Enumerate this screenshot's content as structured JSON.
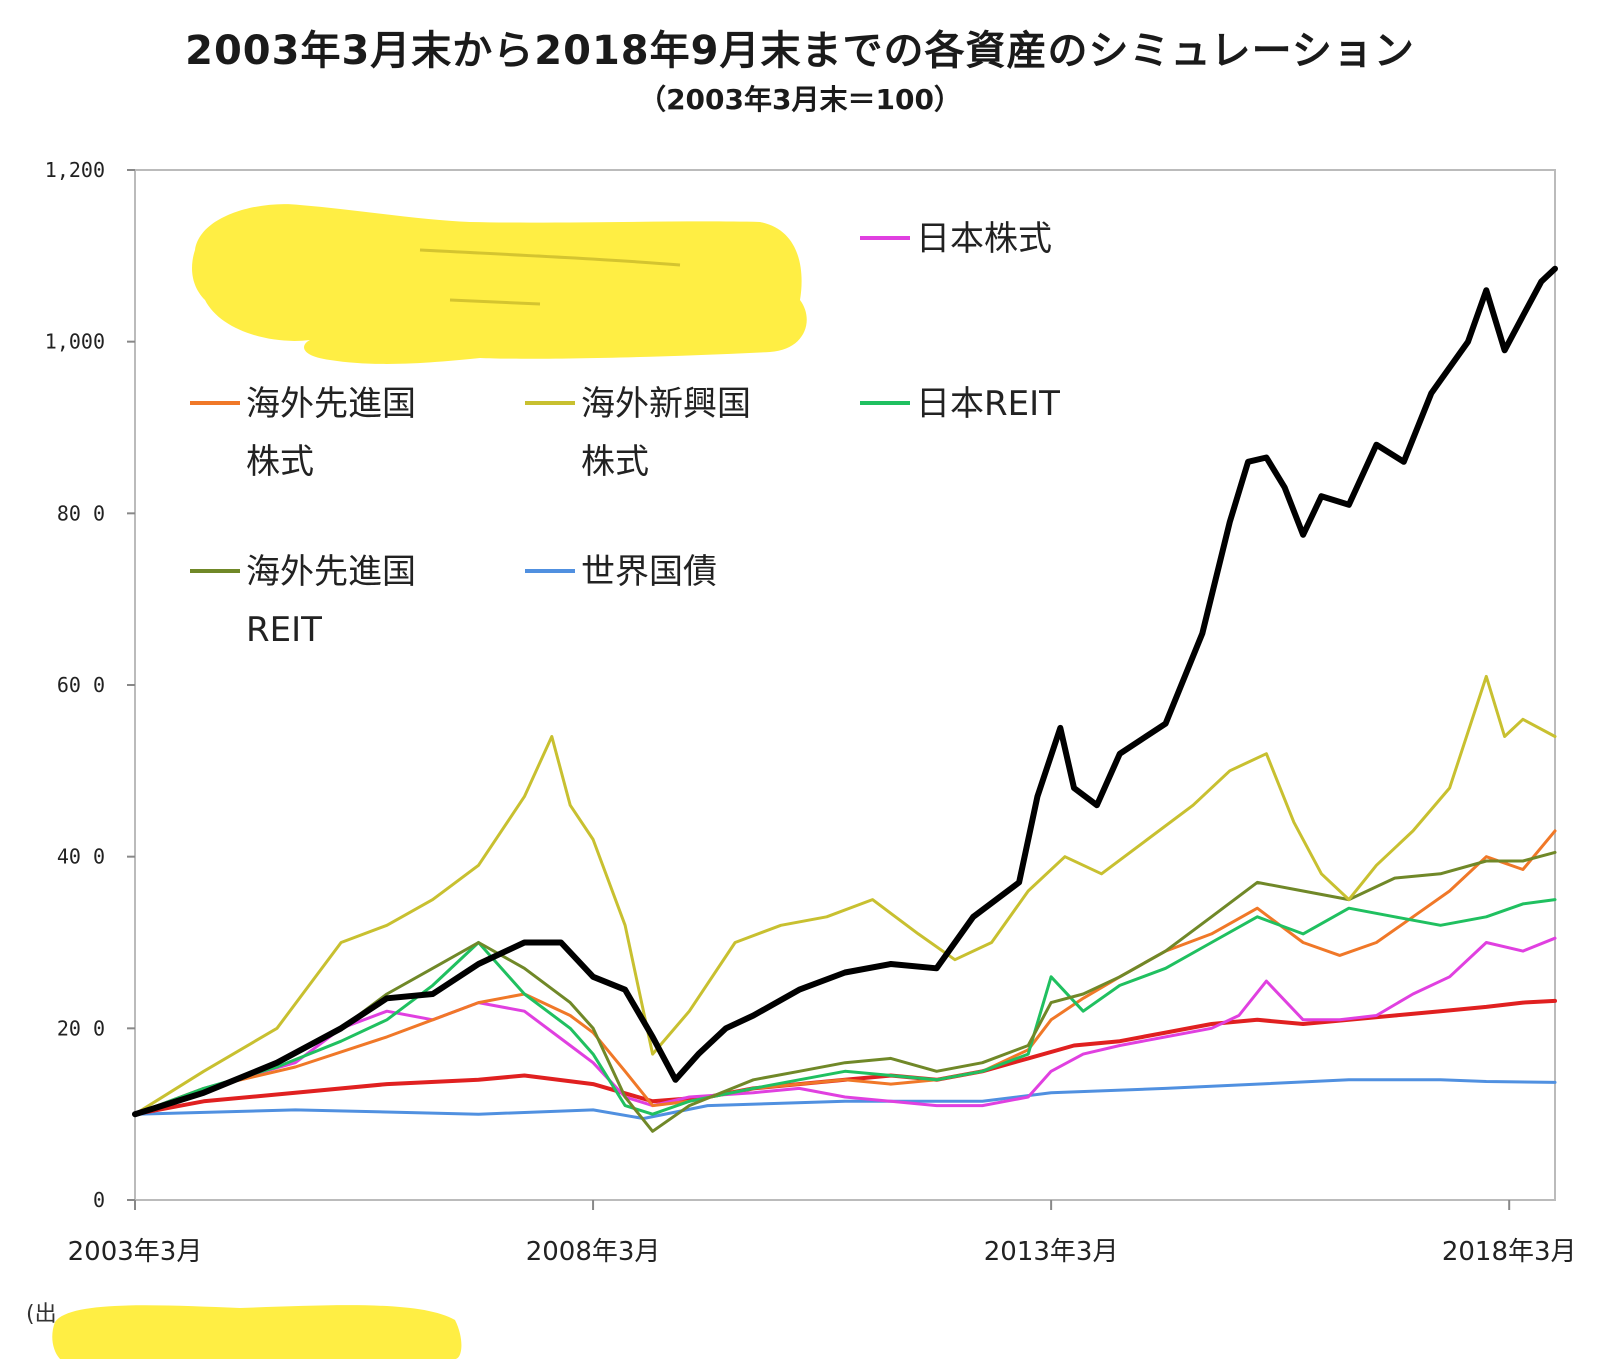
{
  "title": "2003年3月末から2018年9月末までの各資産のシミュレーション",
  "subtitle": "（2003年3月末＝100）",
  "source_prefix": "(出",
  "chart_data": {
    "type": "line",
    "title": "2003年3月末から2018年9月末までの各資産のシミュレーション",
    "subtitle": "（2003年3月末＝100）",
    "xlabel": "",
    "ylabel": "",
    "ylim": [
      0,
      1200
    ],
    "xlim": [
      2003.25,
      2018.75
    ],
    "yticks": [
      0,
      200,
      400,
      600,
      800,
      1000,
      1200
    ],
    "ytick_labels": [
      "0",
      "20 0",
      "40 0",
      "60 0",
      "80 0",
      "1,000",
      "1,200"
    ],
    "xticks": [
      2003.25,
      2008.25,
      2013.25,
      2018.25
    ],
    "xtick_labels": [
      "2003年3月",
      "2008年3月",
      "2013年3月",
      "2018年3月"
    ],
    "grid": false,
    "legend": "upper-left inside plot",
    "series": [
      {
        "key": "black",
        "name": "",
        "color": "#000000",
        "width": 6,
        "x": [
          2003.25,
          2004,
          2004.8,
          2005.5,
          2006,
          2006.5,
          2007,
          2007.5,
          2007.9,
          2008.25,
          2008.6,
          2008.9,
          2009.15,
          2009.4,
          2009.7,
          2010,
          2010.5,
          2011,
          2011.5,
          2012,
          2012.4,
          2012.9,
          2013.1,
          2013.35,
          2013.5,
          2013.75,
          2014,
          2014.5,
          2014.9,
          2015.2,
          2015.4,
          2015.6,
          2015.8,
          2016.0,
          2016.2,
          2016.5,
          2016.8,
          2017.1,
          2017.4,
          2017.8,
          2018.0,
          2018.2,
          2018.4,
          2018.6,
          2018.75
        ],
        "values": [
          100,
          125,
          160,
          200,
          235,
          240,
          275,
          300,
          300,
          260,
          245,
          190,
          140,
          170,
          200,
          215,
          245,
          265,
          275,
          270,
          330,
          370,
          470,
          550,
          480,
          460,
          520,
          555,
          660,
          790,
          860,
          865,
          830,
          775,
          820,
          810,
          880,
          860,
          940,
          1000,
          1060,
          990,
          1030,
          1070,
          1085
        ]
      },
      {
        "key": "japan-equity",
        "name": "日本株式",
        "color": "#e040e0",
        "width": 3,
        "x": [
          2003.25,
          2004,
          2005,
          2005.5,
          2006,
          2006.5,
          2007,
          2007.5,
          2008,
          2008.25,
          2008.6,
          2008.9,
          2009.3,
          2010,
          2010.5,
          2011,
          2011.5,
          2012,
          2012.5,
          2013.0,
          2013.25,
          2013.6,
          2014,
          2014.5,
          2015,
          2015.3,
          2015.6,
          2016,
          2016.4,
          2016.8,
          2017.2,
          2017.6,
          2018,
          2018.4,
          2018.75
        ],
        "values": [
          100,
          130,
          160,
          200,
          220,
          210,
          230,
          220,
          180,
          160,
          120,
          110,
          120,
          125,
          130,
          120,
          115,
          110,
          110,
          120,
          150,
          170,
          180,
          190,
          200,
          215,
          255,
          210,
          210,
          215,
          240,
          260,
          300,
          290,
          305
        ]
      },
      {
        "key": "foreign-dev-equity",
        "name": "海外先進国株式",
        "color": "#f07828",
        "width": 3,
        "x": [
          2003.25,
          2004,
          2005,
          2006,
          2006.5,
          2007,
          2007.5,
          2008,
          2008.25,
          2008.6,
          2008.9,
          2009.3,
          2010,
          2010.5,
          2011,
          2011.5,
          2012,
          2012.5,
          2013,
          2013.25,
          2013.6,
          2014,
          2014.5,
          2015,
          2015.5,
          2016,
          2016.4,
          2016.8,
          2017.2,
          2017.6,
          2018,
          2018.4,
          2018.75
        ],
        "values": [
          100,
          130,
          155,
          190,
          210,
          230,
          240,
          215,
          195,
          150,
          110,
          115,
          130,
          135,
          140,
          135,
          140,
          150,
          175,
          210,
          235,
          260,
          290,
          310,
          340,
          300,
          285,
          300,
          330,
          360,
          400,
          385,
          430
        ]
      },
      {
        "key": "foreign-em-equity",
        "name": "海外新興国株式",
        "color": "#c8c030",
        "width": 3,
        "x": [
          2003.25,
          2004,
          2004.8,
          2005.5,
          2006,
          2006.5,
          2007,
          2007.5,
          2007.8,
          2008.0,
          2008.25,
          2008.6,
          2008.9,
          2009.3,
          2009.8,
          2010.3,
          2010.8,
          2011.3,
          2011.8,
          2012.2,
          2012.6,
          2013.0,
          2013.4,
          2013.8,
          2014.3,
          2014.8,
          2015.2,
          2015.6,
          2015.9,
          2016.2,
          2016.5,
          2016.8,
          2017.2,
          2017.6,
          2018.0,
          2018.2,
          2018.4,
          2018.75
        ],
        "values": [
          100,
          150,
          200,
          300,
          320,
          350,
          390,
          470,
          540,
          460,
          420,
          320,
          170,
          220,
          300,
          320,
          330,
          350,
          310,
          280,
          300,
          360,
          400,
          380,
          420,
          460,
          500,
          520,
          440,
          380,
          350,
          390,
          430,
          480,
          610,
          540,
          560,
          540
        ]
      },
      {
        "key": "japan-reit",
        "name": "日本REIT",
        "color": "#20c060",
        "width": 3,
        "x": [
          2003.25,
          2004,
          2004.8,
          2005.5,
          2006,
          2006.5,
          2007,
          2007.5,
          2008,
          2008.25,
          2008.6,
          2008.9,
          2009.3,
          2010,
          2010.5,
          2011,
          2011.5,
          2012,
          2012.5,
          2013,
          2013.25,
          2013.6,
          2014,
          2014.5,
          2015,
          2015.5,
          2016,
          2016.5,
          2017,
          2017.5,
          2018,
          2018.4,
          2018.75
        ],
        "values": [
          100,
          130,
          155,
          185,
          210,
          250,
          300,
          240,
          200,
          170,
          110,
          100,
          115,
          130,
          140,
          150,
          145,
          140,
          150,
          170,
          260,
          220,
          250,
          270,
          300,
          330,
          310,
          340,
          330,
          320,
          330,
          345,
          350
        ]
      },
      {
        "key": "foreign-dev-reit",
        "name": "海外先進国REIT",
        "color": "#708828",
        "width": 3,
        "x": [
          2003.25,
          2004,
          2004.8,
          2005.5,
          2006,
          2006.5,
          2007,
          2007.5,
          2008,
          2008.25,
          2008.6,
          2008.9,
          2009.3,
          2010,
          2010.5,
          2011,
          2011.5,
          2012,
          2012.5,
          2013,
          2013.25,
          2013.6,
          2014,
          2014.5,
          2015,
          2015.5,
          2016,
          2016.5,
          2017,
          2017.5,
          2018,
          2018.4,
          2018.75
        ],
        "values": [
          100,
          125,
          160,
          200,
          240,
          270,
          300,
          270,
          230,
          200,
          120,
          80,
          110,
          140,
          150,
          160,
          165,
          150,
          160,
          180,
          230,
          240,
          260,
          290,
          330,
          370,
          360,
          350,
          375,
          380,
          395,
          395,
          405
        ]
      },
      {
        "key": "world-bond",
        "name": "世界国債",
        "color": "#5090e0",
        "width": 3,
        "x": [
          2003.25,
          2005,
          2007,
          2008.25,
          2008.8,
          2009.5,
          2011,
          2012.5,
          2013.25,
          2014.5,
          2015.5,
          2016.5,
          2017.5,
          2018,
          2018.75
        ],
        "values": [
          100,
          105,
          100,
          105,
          95,
          110,
          115,
          115,
          125,
          130,
          135,
          140,
          140,
          138,
          137
        ]
      },
      {
        "key": "red",
        "name": "",
        "color": "#e02020",
        "width": 4,
        "x": [
          2003.25,
          2004,
          2005,
          2006,
          2007,
          2007.5,
          2008.25,
          2008.9,
          2009.5,
          2010,
          2011,
          2011.5,
          2012,
          2012.5,
          2013,
          2013.5,
          2014,
          2014.5,
          2015,
          2015.5,
          2016,
          2016.5,
          2017,
          2017.5,
          2018,
          2018.4,
          2018.75
        ],
        "values": [
          100,
          115,
          125,
          135,
          140,
          145,
          135,
          115,
          120,
          130,
          140,
          145,
          140,
          150,
          165,
          180,
          185,
          195,
          205,
          210,
          205,
          210,
          215,
          220,
          225,
          230,
          232
        ]
      }
    ],
    "legend_entries": [
      {
        "key": "japan-equity",
        "lines": [
          "日本株式"
        ]
      },
      {
        "key": "foreign-dev-equity",
        "lines": [
          "海外先進国",
          "株式"
        ]
      },
      {
        "key": "foreign-em-equity",
        "lines": [
          "海外新興国",
          "株式"
        ]
      },
      {
        "key": "japan-reit",
        "lines": [
          "日本REIT"
        ]
      },
      {
        "key": "foreign-dev-reit",
        "lines": [
          "海外先進国",
          "REIT"
        ]
      },
      {
        "key": "world-bond",
        "lines": [
          "世界国債"
        ]
      }
    ]
  }
}
